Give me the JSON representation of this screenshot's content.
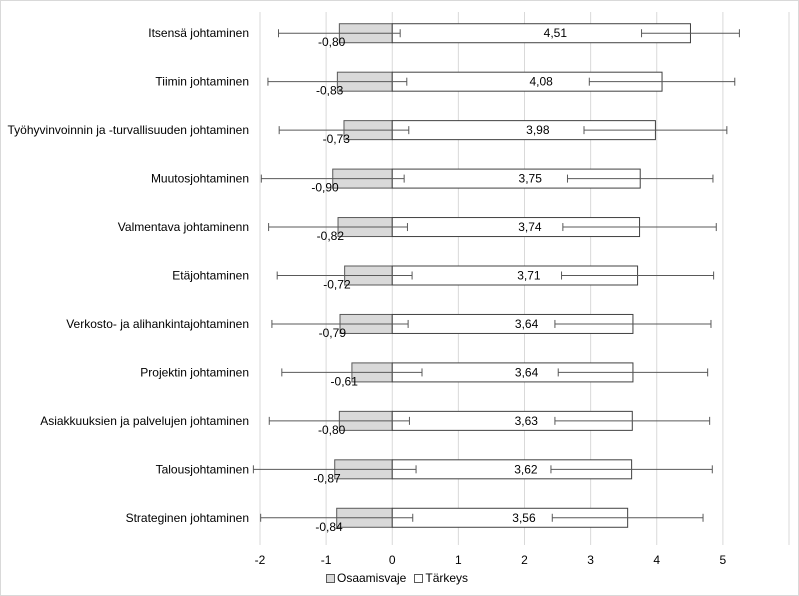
{
  "chart_data": {
    "type": "bar",
    "orientation": "horizontal",
    "categories": [
      "Itsensä johtaminen",
      "Tiimin johtaminen",
      "Työhyvinvoinnin ja -turvallisuuden johtaminen",
      "Muutosjohtaminen",
      "Valmentava johtaminenn",
      "Etäjohtaminen",
      "Verkosto- ja alihankintajohtaminen",
      "Projektin johtaminen",
      "Asiakkuuksien ja palvelujen johtaminen",
      "Talousjohtaminen",
      "Strateginen johtaminen"
    ],
    "series": [
      {
        "name": "Osaamisvaje",
        "values": [
          -0.8,
          -0.83,
          -0.73,
          -0.9,
          -0.82,
          -0.72,
          -0.79,
          -0.61,
          -0.8,
          -0.87,
          -0.84
        ],
        "labels": [
          "-0,80",
          "-0,83",
          "-0,73",
          "-0,90",
          "-0,82",
          "-0,72",
          "-0,79",
          "-0,61",
          "-0,80",
          "-0,87",
          "-0,84"
        ],
        "error": [
          0.92,
          1.05,
          0.98,
          1.08,
          1.05,
          1.02,
          1.03,
          1.06,
          1.06,
          1.23,
          1.15
        ],
        "color": "#d9d9d9"
      },
      {
        "name": "Tärkeys",
        "values": [
          4.51,
          4.08,
          3.98,
          3.75,
          3.74,
          3.71,
          3.64,
          3.64,
          3.63,
          3.62,
          3.56
        ],
        "labels": [
          "4,51",
          "4,08",
          "3,98",
          "3,75",
          "3,74",
          "3,71",
          "3,64",
          "3,64",
          "3,63",
          "3,62",
          "3,56"
        ],
        "error": [
          0.74,
          1.1,
          1.08,
          1.1,
          1.16,
          1.15,
          1.18,
          1.13,
          1.17,
          1.22,
          1.14
        ],
        "color": "#ffffff"
      }
    ],
    "xlim": [
      -2,
      6
    ],
    "xticks": [
      -2,
      -1,
      0,
      1,
      2,
      3,
      4,
      5
    ],
    "grid": true,
    "legend_position": "bottom",
    "title": "",
    "xlabel": "",
    "ylabel": ""
  },
  "legend": {
    "items": [
      {
        "label": "Osaamisvaje",
        "color": "#d9d9d9"
      },
      {
        "label": "Tärkeys",
        "color": "#ffffff"
      }
    ]
  }
}
